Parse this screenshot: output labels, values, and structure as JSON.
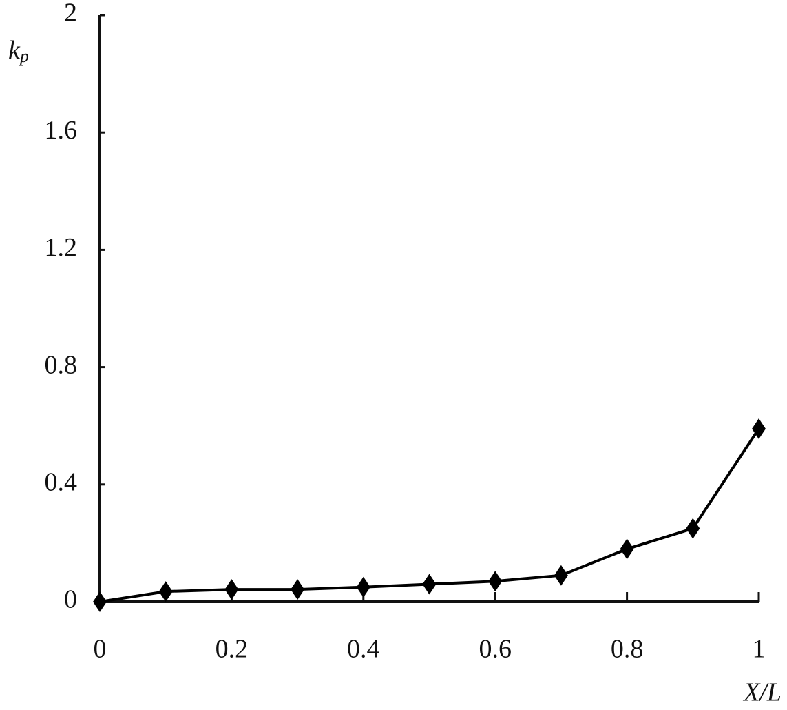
{
  "chart_data": {
    "type": "line",
    "xlabel": "X/L",
    "ylabel": "k",
    "ylabel_subscript": "p",
    "x": [
      0,
      0.1,
      0.2,
      0.3,
      0.4,
      0.5,
      0.6,
      0.7,
      0.8,
      0.9,
      1
    ],
    "series": [
      {
        "color": "#000000",
        "values": [
          0,
          0.035,
          0.042,
          0.042,
          0.05,
          0.06,
          0.07,
          0.09,
          0.18,
          0.25,
          0.59
        ]
      }
    ],
    "xlim": [
      0,
      1
    ],
    "xticks": [
      0,
      0.2,
      0.4,
      0.6,
      0.8,
      1
    ],
    "ylim": [
      0,
      2
    ],
    "yticks": [
      0,
      0.4,
      0.8,
      1.2,
      1.6,
      2
    ],
    "marker": "diamond",
    "grid": false
  }
}
